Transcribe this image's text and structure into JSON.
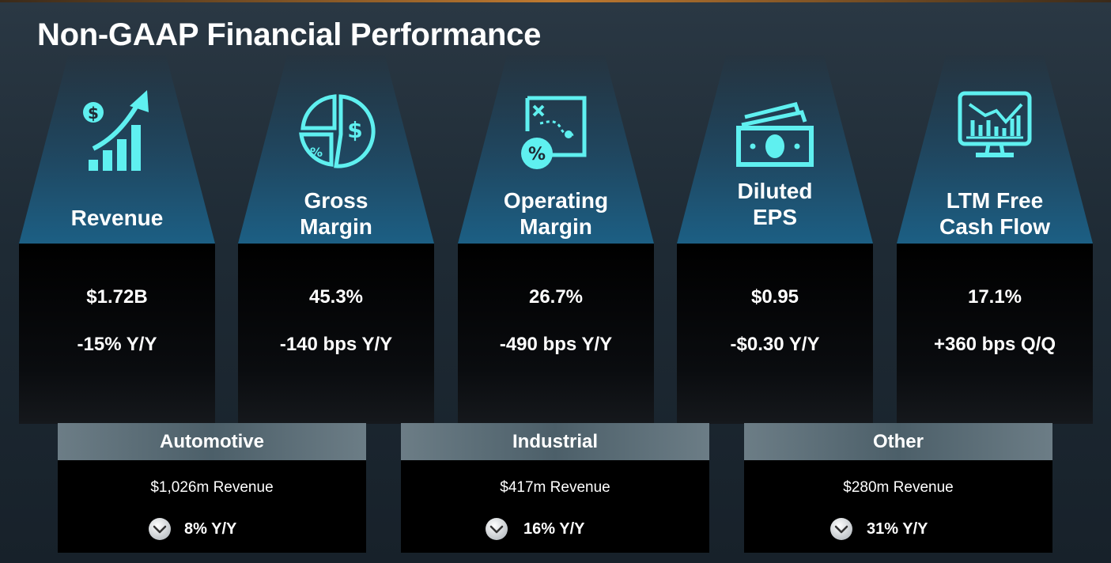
{
  "title": "Non-GAAP Financial Performance",
  "accent_color": "#5ff0f0",
  "metrics": [
    {
      "label_lines": [
        "Revenue"
      ],
      "value": "$1.72B",
      "change": "-15% Y/Y",
      "icon": "revenue-growth-icon"
    },
    {
      "label_lines": [
        "Gross",
        "Margin"
      ],
      "value": "45.3%",
      "change": "-140 bps Y/Y",
      "icon": "pie-chart-dollar-icon"
    },
    {
      "label_lines": [
        "Operating",
        "Margin"
      ],
      "value": "26.7%",
      "change": "-490 bps Y/Y",
      "icon": "strategy-percent-icon"
    },
    {
      "label_lines": [
        "Diluted",
        "EPS"
      ],
      "value": "$0.95",
      "change": "-$0.30 Y/Y",
      "icon": "cash-bills-icon"
    },
    {
      "label_lines": [
        "LTM Free",
        "Cash Flow"
      ],
      "value": "17.1%",
      "change": "+360 bps Q/Q",
      "icon": "monitor-chart-icon"
    }
  ],
  "segments": [
    {
      "name": "Automotive",
      "revenue": "$1,026m Revenue",
      "change": "8% Y/Y",
      "direction": "down"
    },
    {
      "name": "Industrial",
      "revenue": "$417m Revenue",
      "change": "16% Y/Y",
      "direction": "down"
    },
    {
      "name": "Other",
      "revenue": "$280m Revenue",
      "change": "31% Y/Y",
      "direction": "down"
    }
  ]
}
